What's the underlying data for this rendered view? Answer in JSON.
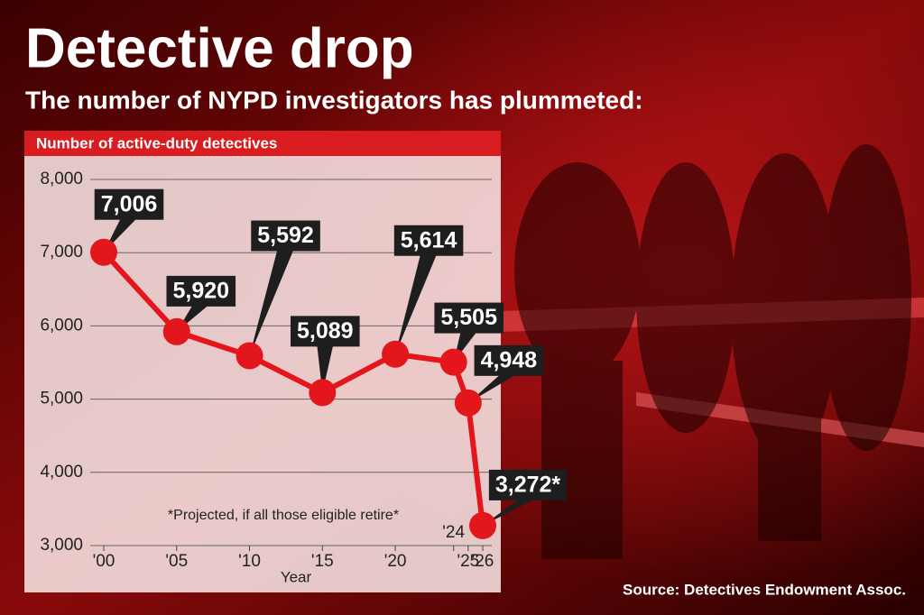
{
  "chart_data": {
    "type": "line",
    "title": "Detective drop",
    "subtitle": "The number of NYPD investigators has plummeted:",
    "panel_title": "Number of active-duty detectives",
    "x_label": "Year",
    "annotation": "*Projected, if all those eligible retire*",
    "source": "Source: Detectives Endowment Assoc.",
    "x": [
      2000,
      2005,
      2010,
      2015,
      2020,
      2024,
      2025,
      2026
    ],
    "series": [
      {
        "color": "#e3161c",
        "values": [
          7006,
          5920,
          5592,
          5089,
          5614,
          5505,
          4948,
          3272
        ],
        "value_labels": [
          "7,006",
          "5,920",
          "5,592",
          "5,089",
          "5,614",
          "5,505",
          "4,948",
          "3,272*"
        ]
      }
    ],
    "xlim": [
      2000,
      2026
    ],
    "xticks": [
      {
        "value": 2000,
        "label": "'00"
      },
      {
        "value": 2005,
        "label": "'05"
      },
      {
        "value": 2010,
        "label": "'10"
      },
      {
        "value": 2015,
        "label": "'15"
      },
      {
        "value": 2020,
        "label": "'20"
      },
      {
        "value": 2024,
        "label": "'24"
      },
      {
        "value": 2025,
        "label": "'25"
      },
      {
        "value": 2026,
        "label": "'26"
      }
    ],
    "ylim": [
      3000,
      8000
    ],
    "yticks": [
      {
        "value": 3000,
        "label": "3,000"
      },
      {
        "value": 4000,
        "label": "4,000"
      },
      {
        "value": 5000,
        "label": "5,000"
      },
      {
        "value": 6000,
        "label": "6,000"
      },
      {
        "value": 7000,
        "label": "7,000"
      },
      {
        "value": 8000,
        "label": "8,000"
      }
    ],
    "grid": true
  }
}
